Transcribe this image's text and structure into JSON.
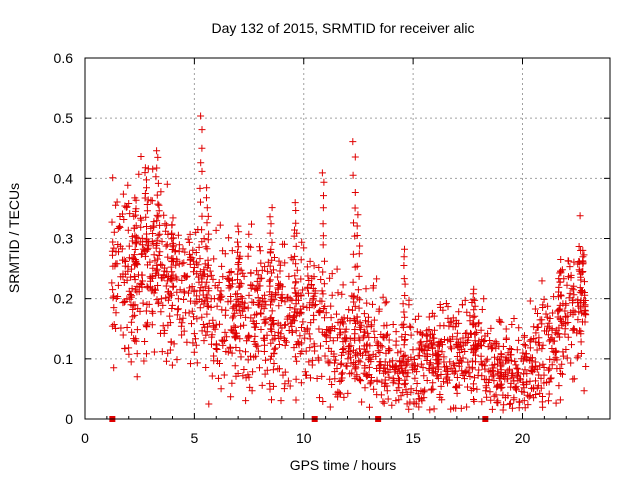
{
  "chart_data": {
    "type": "scatter",
    "title": "Day 132 of 2015, SRMTID for receiver alic",
    "xlabel": "GPS time / hours",
    "ylabel": "SRMTID / TECUs",
    "xlim": [
      0,
      24
    ],
    "ylim": [
      0,
      0.6
    ],
    "x_ticks": [
      0,
      5,
      10,
      15,
      20
    ],
    "x_tick_labels": [
      "0",
      "5",
      "10",
      "15",
      "20"
    ],
    "y_ticks": [
      0,
      0.1,
      0.2,
      0.3,
      0.4,
      0.5,
      0.6
    ],
    "y_tick_labels": [
      "0",
      "0.1",
      "0.2",
      "0.3",
      "0.4",
      "0.5",
      "0.6"
    ],
    "grid": true,
    "marker": "+",
    "color": "#e00000",
    "x_range_data": [
      1.2,
      22.9
    ],
    "trend": [
      {
        "x": 1.2,
        "y": 0.24
      },
      {
        "x": 2.0,
        "y": 0.25
      },
      {
        "x": 3.0,
        "y": 0.26
      },
      {
        "x": 4.0,
        "y": 0.22
      },
      {
        "x": 5.0,
        "y": 0.2
      },
      {
        "x": 6.0,
        "y": 0.19
      },
      {
        "x": 7.0,
        "y": 0.18
      },
      {
        "x": 8.0,
        "y": 0.17
      },
      {
        "x": 9.0,
        "y": 0.16
      },
      {
        "x": 10.0,
        "y": 0.17
      },
      {
        "x": 11.0,
        "y": 0.14
      },
      {
        "x": 12.0,
        "y": 0.12
      },
      {
        "x": 13.0,
        "y": 0.11
      },
      {
        "x": 14.0,
        "y": 0.1
      },
      {
        "x": 15.0,
        "y": 0.09
      },
      {
        "x": 16.0,
        "y": 0.1
      },
      {
        "x": 17.0,
        "y": 0.1
      },
      {
        "x": 18.0,
        "y": 0.1
      },
      {
        "x": 19.0,
        "y": 0.08
      },
      {
        "x": 20.0,
        "y": 0.07
      },
      {
        "x": 21.0,
        "y": 0.12
      },
      {
        "x": 22.0,
        "y": 0.17
      },
      {
        "x": 22.9,
        "y": 0.2
      }
    ],
    "spikes": [
      {
        "x": 2.3,
        "y": 0.37
      },
      {
        "x": 2.8,
        "y": 0.42
      },
      {
        "x": 3.3,
        "y": 0.45
      },
      {
        "x": 4.0,
        "y": 0.33
      },
      {
        "x": 5.3,
        "y": 0.5
      },
      {
        "x": 5.6,
        "y": 0.38
      },
      {
        "x": 7.0,
        "y": 0.32
      },
      {
        "x": 8.5,
        "y": 0.35
      },
      {
        "x": 9.6,
        "y": 0.36
      },
      {
        "x": 10.9,
        "y": 0.41
      },
      {
        "x": 12.3,
        "y": 0.46
      },
      {
        "x": 12.5,
        "y": 0.34
      },
      {
        "x": 14.6,
        "y": 0.28
      },
      {
        "x": 17.8,
        "y": 0.22
      },
      {
        "x": 21.7,
        "y": 0.25
      },
      {
        "x": 22.7,
        "y": 0.28
      }
    ],
    "gap_markers": [
      1.25,
      10.5,
      13.4,
      18.3
    ]
  }
}
